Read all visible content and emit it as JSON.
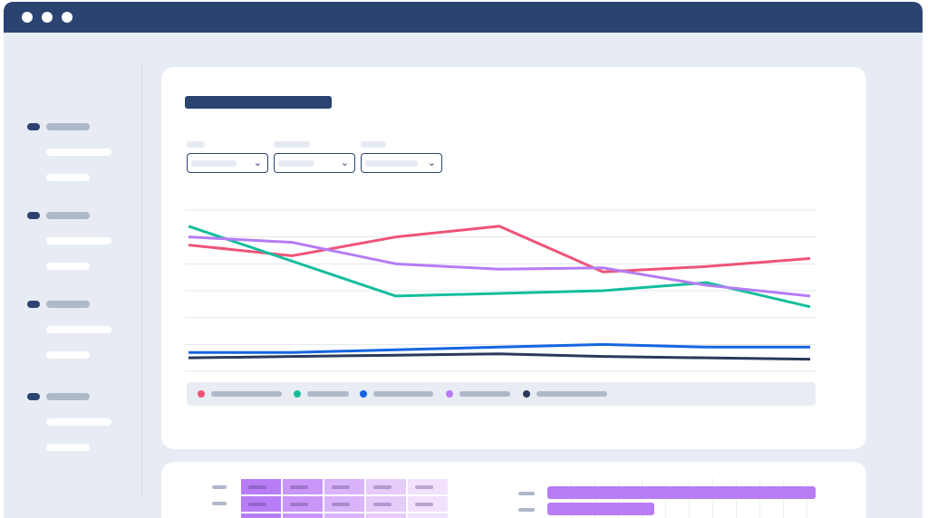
{
  "window": {
    "titlebar_color": "#2b4370",
    "controls": [
      "close-dot",
      "minimize-dot",
      "maximize-dot"
    ]
  },
  "sidebar": {
    "sections": [
      {
        "icon": "nav-bullet",
        "items": 2
      },
      {
        "icon": "nav-bullet",
        "items": 2
      },
      {
        "icon": "nav-bullet",
        "items": 2
      },
      {
        "icon": "nav-bullet",
        "items": 2
      }
    ]
  },
  "filters": [
    {
      "icon": "chevron-down-icon",
      "glyph": "⌄"
    },
    {
      "icon": "chevron-down-icon",
      "glyph": "⌄"
    },
    {
      "icon": "chevron-down-icon",
      "glyph": "⌄"
    }
  ],
  "chart_data": {
    "type": "line",
    "x": [
      0,
      1,
      2,
      3,
      4,
      5,
      6
    ],
    "ylim": [
      0,
      6
    ],
    "grid": true,
    "legend_position": "bottom",
    "series": [
      {
        "color": "#ef5377",
        "values": [
          4.7,
          4.3,
          5.0,
          5.4,
          3.7,
          3.9,
          4.2
        ]
      },
      {
        "color": "#13be9b",
        "values": [
          5.4,
          4.1,
          2.8,
          2.9,
          3.0,
          3.3,
          2.4
        ]
      },
      {
        "color": "#1565e0",
        "values": [
          0.7,
          0.7,
          0.8,
          0.9,
          1.0,
          0.9,
          0.9
        ]
      },
      {
        "color": "#b57cf5",
        "values": [
          5.0,
          4.8,
          4.0,
          3.8,
          3.85,
          3.2,
          2.8
        ]
      },
      {
        "color": "#2b3a5a",
        "values": [
          0.5,
          0.55,
          0.6,
          0.65,
          0.55,
          0.5,
          0.45
        ]
      }
    ]
  },
  "bottom_panel": {
    "heatmap_colors": [
      "#b87cf5",
      "#c996f7",
      "#d9b4fa",
      "#e6cbfb",
      "#f1e1fd"
    ],
    "bar_color": "#b87cf5",
    "bars": [
      1.0,
      0.4
    ]
  }
}
